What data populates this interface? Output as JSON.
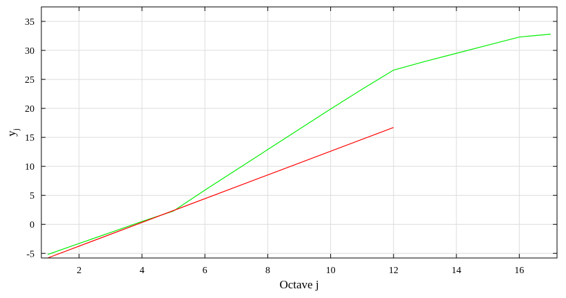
{
  "chart_data": {
    "type": "line",
    "title": "",
    "xlabel": "Octave j",
    "ylabel": "y",
    "ylabel_subscript": "j",
    "xlim": [
      0.8,
      17.2
    ],
    "ylim": [
      -5.8,
      37.5
    ],
    "xticks": [
      2,
      4,
      6,
      8,
      10,
      12,
      14,
      16
    ],
    "yticks": [
      -5,
      0,
      5,
      10,
      15,
      20,
      25,
      30,
      35
    ],
    "xtick_labels": [
      "2",
      "4",
      "6",
      "8",
      "10",
      "12",
      "14",
      "16"
    ],
    "ytick_labels": [
      "-5",
      "0",
      "5",
      "10",
      "15",
      "20",
      "25",
      "30",
      "35"
    ],
    "grid": true,
    "legend": "none",
    "series": [
      {
        "color": "#00ee00",
        "x": [
          1,
          2,
          3,
          4,
          5,
          6,
          7,
          8,
          9,
          10,
          11,
          12,
          13,
          14,
          15,
          16,
          17
        ],
        "y": [
          -5.2,
          -3.3,
          -1.4,
          0.5,
          2.3,
          5.9,
          9.4,
          12.9,
          16.4,
          19.9,
          23.3,
          26.6,
          28.1,
          29.5,
          30.9,
          32.3,
          32.8
        ]
      },
      {
        "color": "#ff0000",
        "x": [
          1,
          12
        ],
        "y": [
          -5.8,
          16.7
        ]
      }
    ]
  }
}
